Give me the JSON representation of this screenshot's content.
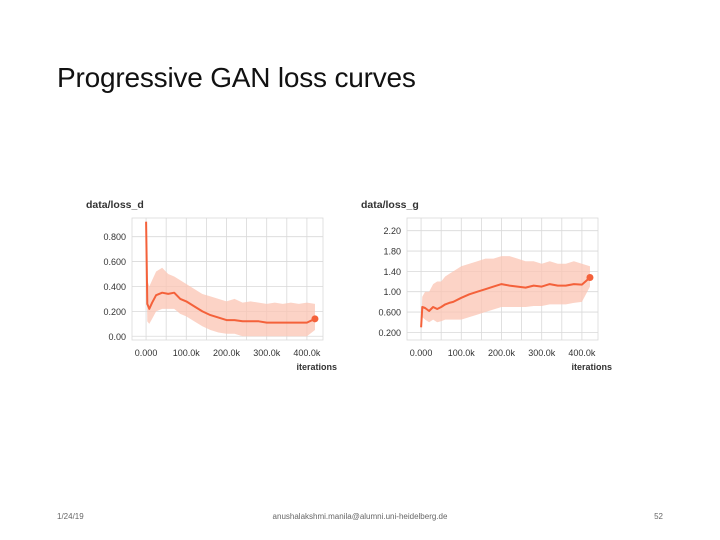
{
  "slide": {
    "title": "Progressive GAN loss curves",
    "footer_date": "1/24/19",
    "footer_email": "anushalakshmi.manila@alumni.uni-heidelberg.de",
    "page_number": "52"
  },
  "colors": {
    "line": "#f4613a",
    "band": "#fbc4b3",
    "grid": "#d9d9d9"
  },
  "chart_data": [
    {
      "type": "line",
      "title": "data/loss_d",
      "xlabel": "iterations",
      "ylabel": "",
      "x_ticks": [
        0,
        100000,
        200000,
        300000,
        400000
      ],
      "x_tick_labels": [
        "0.000",
        "100.0k",
        "200.0k",
        "300.0k",
        "400.0k"
      ],
      "y_ticks": [
        0.0,
        0.2,
        0.4,
        0.6,
        0.8
      ],
      "y_tick_labels": [
        "0.00",
        "0.200",
        "0.400",
        "0.600",
        "0.800"
      ],
      "xlim": [
        -35000,
        440000
      ],
      "ylim": [
        -0.03,
        0.95
      ],
      "grid": true,
      "series": [
        {
          "x": [
            0,
            3000,
            8000,
            15000,
            25000,
            40000,
            55000,
            70000,
            85000,
            100000,
            120000,
            140000,
            160000,
            180000,
            200000,
            220000,
            240000,
            260000,
            280000,
            300000,
            320000,
            340000,
            360000,
            380000,
            400000,
            420000
          ],
          "y": [
            0.92,
            0.26,
            0.22,
            0.27,
            0.33,
            0.35,
            0.34,
            0.35,
            0.3,
            0.28,
            0.24,
            0.2,
            0.17,
            0.15,
            0.13,
            0.13,
            0.12,
            0.12,
            0.12,
            0.11,
            0.11,
            0.11,
            0.11,
            0.11,
            0.11,
            0.14
          ]
        }
      ],
      "band": {
        "upper": [
          0.92,
          0.45,
          0.4,
          0.45,
          0.52,
          0.55,
          0.5,
          0.48,
          0.45,
          0.42,
          0.38,
          0.34,
          0.32,
          0.3,
          0.28,
          0.3,
          0.27,
          0.28,
          0.27,
          0.26,
          0.27,
          0.26,
          0.27,
          0.26,
          0.27,
          0.26
        ],
        "lower": [
          0.92,
          0.12,
          0.1,
          0.14,
          0.2,
          0.22,
          0.22,
          0.22,
          0.18,
          0.16,
          0.12,
          0.08,
          0.05,
          0.03,
          0.02,
          0.02,
          0.0,
          0.0,
          0.0,
          0.0,
          0.0,
          0.0,
          0.0,
          0.0,
          0.0,
          0.05
        ]
      }
    },
    {
      "type": "line",
      "title": "data/loss_g",
      "xlabel": "iterations",
      "ylabel": "",
      "x_ticks": [
        0,
        100000,
        200000,
        300000,
        400000
      ],
      "x_tick_labels": [
        "0.000",
        "100.0k",
        "200.0k",
        "300.0k",
        "400.0k"
      ],
      "y_ticks": [
        0.2,
        0.6,
        1.0,
        1.4,
        1.8,
        2.2
      ],
      "y_tick_labels": [
        "0.200",
        "0.600",
        "1.00",
        "1.40",
        "1.80",
        "2.20"
      ],
      "xlim": [
        -35000,
        440000
      ],
      "ylim": [
        0.05,
        2.45
      ],
      "grid": true,
      "series": [
        {
          "x": [
            0,
            3000,
            10000,
            20000,
            30000,
            40000,
            50000,
            60000,
            70000,
            80000,
            100000,
            120000,
            140000,
            160000,
            180000,
            200000,
            220000,
            240000,
            260000,
            280000,
            300000,
            320000,
            340000,
            360000,
            380000,
            400000,
            420000
          ],
          "y": [
            0.3,
            0.7,
            0.68,
            0.62,
            0.7,
            0.66,
            0.7,
            0.75,
            0.78,
            0.8,
            0.88,
            0.95,
            1.0,
            1.05,
            1.1,
            1.15,
            1.12,
            1.1,
            1.08,
            1.12,
            1.1,
            1.15,
            1.12,
            1.12,
            1.15,
            1.14,
            1.28
          ]
        }
      ],
      "band": {
        "upper": [
          0.3,
          0.9,
          1.0,
          1.0,
          1.15,
          1.2,
          1.2,
          1.3,
          1.35,
          1.4,
          1.5,
          1.55,
          1.6,
          1.65,
          1.65,
          1.7,
          1.7,
          1.65,
          1.6,
          1.6,
          1.55,
          1.6,
          1.55,
          1.55,
          1.6,
          1.55,
          1.5
        ],
        "lower": [
          0.3,
          0.5,
          0.45,
          0.4,
          0.45,
          0.4,
          0.42,
          0.45,
          0.45,
          0.45,
          0.45,
          0.5,
          0.55,
          0.6,
          0.65,
          0.7,
          0.7,
          0.7,
          0.7,
          0.72,
          0.72,
          0.75,
          0.75,
          0.75,
          0.78,
          0.8,
          1.1
        ]
      }
    }
  ]
}
